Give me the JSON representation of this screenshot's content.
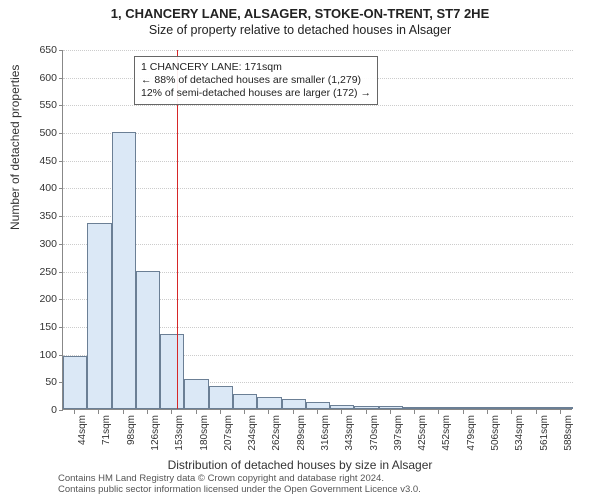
{
  "title_main": "1, CHANCERY LANE, ALSAGER, STOKE-ON-TRENT, ST7 2HE",
  "title_sub": "Size of property relative to detached houses in Alsager",
  "y_label": "Number of detached properties",
  "x_label": "Distribution of detached houses by size in Alsager",
  "footer_line1": "Contains HM Land Registry data © Crown copyright and database right 2024.",
  "footer_line2": "Contains public sector information licensed under the Open Government Licence v3.0.",
  "chart": {
    "type": "histogram",
    "y_max": 650,
    "y_ticks": [
      0,
      50,
      100,
      150,
      200,
      250,
      300,
      350,
      400,
      450,
      500,
      550,
      600,
      650
    ],
    "bar_fill": "#dbe8f6",
    "bar_stroke": "#6b7f95",
    "grid_color": "#cccccc",
    "refline_color": "#d62728",
    "refline_x_index": 4.7,
    "x_tick_labels": [
      "44sqm",
      "71sqm",
      "98sqm",
      "126sqm",
      "153sqm",
      "180sqm",
      "207sqm",
      "234sqm",
      "262sqm",
      "289sqm",
      "316sqm",
      "343sqm",
      "370sqm",
      "397sqm",
      "425sqm",
      "452sqm",
      "479sqm",
      "506sqm",
      "534sqm",
      "561sqm",
      "588sqm"
    ],
    "bars": [
      95,
      335,
      500,
      250,
      135,
      55,
      42,
      28,
      22,
      18,
      12,
      8,
      6,
      5,
      4,
      3,
      3,
      2,
      2,
      2,
      1
    ]
  },
  "annotation": {
    "line1": "1 CHANCERY LANE: 171sqm",
    "line2": "← 88% of detached houses are smaller (1,279)",
    "line3": "12% of semi-detached houses are larger (172) →"
  }
}
